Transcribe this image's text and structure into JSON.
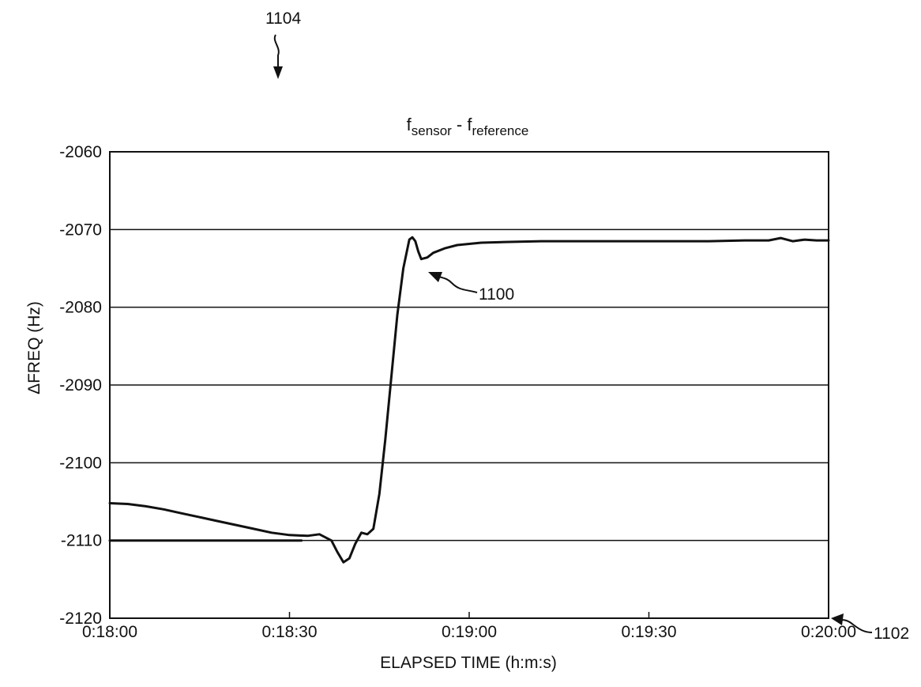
{
  "figure": {
    "ref_numerals": {
      "figure": "1104",
      "curve": "1100",
      "plot": "1102"
    }
  },
  "chart_data": {
    "type": "line",
    "title": {
      "base1": "f",
      "sub1": "sensor",
      "mid": " - ",
      "base2": "f",
      "sub2": "reference"
    },
    "xlabel": "ELAPSED TIME (h:m:s)",
    "ylabel": "ΔFREQ (Hz)",
    "xlim": [
      0,
      120
    ],
    "ylim": [
      -2120,
      -2060
    ],
    "x_ticks": [
      {
        "value": 0,
        "label": "0:18:00"
      },
      {
        "value": 30,
        "label": "0:18:30"
      },
      {
        "value": 60,
        "label": "0:19:00"
      },
      {
        "value": 90,
        "label": "0:19:30"
      },
      {
        "value": 120,
        "label": "0:20:00"
      }
    ],
    "y_ticks": [
      {
        "value": -2060,
        "label": "-2060"
      },
      {
        "value": -2070,
        "label": "-2070"
      },
      {
        "value": -2080,
        "label": "-2080"
      },
      {
        "value": -2090,
        "label": "-2090"
      },
      {
        "value": -2100,
        "label": "-2100"
      },
      {
        "value": -2110,
        "label": "-2110"
      },
      {
        "value": -2120,
        "label": "-2120"
      }
    ],
    "grid": "horizontal",
    "legend": "none",
    "series": [
      {
        "x": [
          0,
          3,
          6,
          9,
          12,
          15,
          18,
          21,
          24,
          27,
          30,
          33,
          35,
          37,
          38,
          39,
          40,
          41,
          42,
          43,
          44,
          45,
          46,
          47,
          48,
          49,
          50,
          50.5,
          51,
          51.5,
          52,
          53,
          54,
          56,
          58,
          62,
          66,
          72,
          80,
          90,
          100,
          106,
          110,
          112,
          114,
          116,
          118,
          120
        ],
        "y": [
          -2105.2,
          -2105.3,
          -2105.6,
          -2106.0,
          -2106.5,
          -2107.0,
          -2107.5,
          -2108.0,
          -2108.5,
          -2109.0,
          -2109.3,
          -2109.4,
          -2109.2,
          -2110.0,
          -2111.5,
          -2112.8,
          -2112.3,
          -2110.4,
          -2109.0,
          -2109.2,
          -2108.5,
          -2104.0,
          -2097.0,
          -2089.0,
          -2081.0,
          -2075.0,
          -2071.3,
          -2071.0,
          -2071.5,
          -2072.8,
          -2073.8,
          -2073.6,
          -2073.0,
          -2072.4,
          -2072.0,
          -2071.7,
          -2071.6,
          -2071.5,
          -2071.5,
          -2071.5,
          -2071.5,
          -2071.4,
          -2071.4,
          -2071.1,
          -2071.5,
          -2071.3,
          -2071.4,
          -2071.4
        ]
      },
      {
        "x": [
          0,
          32
        ],
        "y": [
          -2110,
          -2110
        ]
      }
    ]
  }
}
